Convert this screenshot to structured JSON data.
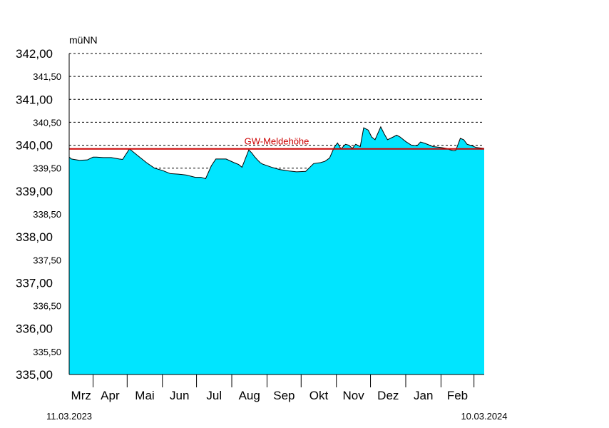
{
  "chart_data": {
    "type": "area",
    "ylabel": "müNN",
    "ylim": [
      335.0,
      342.0
    ],
    "y_ticks": [
      {
        "value": 342.0,
        "label": "342,00",
        "major": true
      },
      {
        "value": 341.5,
        "label": "341,50",
        "major": false
      },
      {
        "value": 341.0,
        "label": "341,00",
        "major": true
      },
      {
        "value": 340.5,
        "label": "340,50",
        "major": false
      },
      {
        "value": 340.0,
        "label": "340,00",
        "major": true
      },
      {
        "value": 339.5,
        "label": "339,50",
        "major": false
      },
      {
        "value": 339.0,
        "label": "339,00",
        "major": true
      },
      {
        "value": 338.5,
        "label": "338,50",
        "major": false
      },
      {
        "value": 338.0,
        "label": "338,00",
        "major": true
      },
      {
        "value": 337.5,
        "label": "337,50",
        "major": false
      },
      {
        "value": 337.0,
        "label": "337,00",
        "major": true
      },
      {
        "value": 336.5,
        "label": "336,50",
        "major": false
      },
      {
        "value": 336.0,
        "label": "336,00",
        "major": true
      },
      {
        "value": 335.5,
        "label": "335,50",
        "major": false
      },
      {
        "value": 335.0,
        "label": "335,00",
        "major": true
      }
    ],
    "xlim": [
      "2023-03-11",
      "2024-03-10"
    ],
    "start_date_label": "11.03.2023",
    "end_date_label": "10.03.2024",
    "month_labels": [
      "Mrz",
      "Apr",
      "Mai",
      "Jun",
      "Jul",
      "Aug",
      "Sep",
      "Okt",
      "Nov",
      "Dez",
      "Jan",
      "Feb"
    ],
    "month_starts": [
      "2023-04-01",
      "2023-05-01",
      "2023-06-01",
      "2023-07-01",
      "2023-08-01",
      "2023-09-01",
      "2023-10-01",
      "2023-11-01",
      "2023-12-01",
      "2024-01-01",
      "2024-02-01",
      "2024-03-01"
    ],
    "grid": true,
    "threshold": {
      "label": "GW-Meldehöhe",
      "value": 339.92,
      "color": "#cc0000"
    },
    "fill_color": "#00e5ff",
    "series": [
      {
        "x": [
          "2023-03-11",
          "2023-03-13",
          "2023-03-20",
          "2023-03-27",
          "2023-04-01",
          "2023-04-04",
          "2023-04-10",
          "2023-04-17",
          "2023-04-24",
          "2023-04-27",
          "2023-05-03",
          "2023-05-05",
          "2023-05-10",
          "2023-05-18",
          "2023-05-25",
          "2023-06-01",
          "2023-06-08",
          "2023-06-15",
          "2023-06-22",
          "2023-06-30",
          "2023-07-05",
          "2023-07-09",
          "2023-07-14",
          "2023-07-18",
          "2023-07-27",
          "2023-08-03",
          "2023-08-07",
          "2023-08-10",
          "2023-08-16",
          "2023-08-19",
          "2023-08-21",
          "2023-08-24",
          "2023-08-26",
          "2023-08-28",
          "2023-09-05",
          "2023-09-12",
          "2023-09-20",
          "2023-09-27",
          "2023-10-05",
          "2023-10-12",
          "2023-10-18",
          "2023-10-22",
          "2023-10-26",
          "2023-10-30",
          "2023-11-02",
          "2023-11-05",
          "2023-11-09",
          "2023-11-12",
          "2023-11-15",
          "2023-11-18",
          "2023-11-22",
          "2023-11-25",
          "2023-11-29",
          "2023-12-02",
          "2023-12-05",
          "2023-12-10",
          "2023-12-13",
          "2023-12-16",
          "2023-12-21",
          "2023-12-24",
          "2023-12-27",
          "2024-01-01",
          "2024-01-06",
          "2024-01-11",
          "2024-01-14",
          "2024-01-18",
          "2024-01-25",
          "2024-02-01",
          "2024-02-06",
          "2024-02-09",
          "2024-02-12",
          "2024-02-14",
          "2024-02-18",
          "2024-02-21",
          "2024-02-24",
          "2024-02-28",
          "2024-03-03",
          "2024-03-10"
        ],
        "y": [
          339.74,
          339.7,
          339.67,
          339.68,
          339.74,
          339.74,
          339.73,
          339.73,
          339.7,
          339.69,
          339.92,
          339.88,
          339.78,
          339.62,
          339.5,
          339.45,
          339.38,
          339.37,
          339.35,
          339.3,
          339.3,
          339.27,
          339.55,
          339.7,
          339.7,
          339.62,
          339.58,
          339.52,
          339.9,
          339.82,
          339.75,
          339.67,
          339.62,
          339.59,
          339.52,
          339.47,
          339.44,
          339.42,
          339.43,
          339.6,
          339.62,
          339.65,
          339.72,
          339.95,
          340.05,
          339.92,
          340.02,
          340.0,
          339.93,
          340.02,
          339.97,
          340.38,
          340.33,
          340.18,
          340.12,
          340.4,
          340.25,
          340.12,
          340.18,
          340.22,
          340.18,
          340.08,
          340.0,
          339.99,
          340.07,
          340.04,
          339.97,
          339.95,
          339.93,
          339.9,
          339.88,
          339.89,
          340.15,
          340.12,
          340.02,
          339.99,
          339.95,
          339.93
        ]
      }
    ]
  }
}
